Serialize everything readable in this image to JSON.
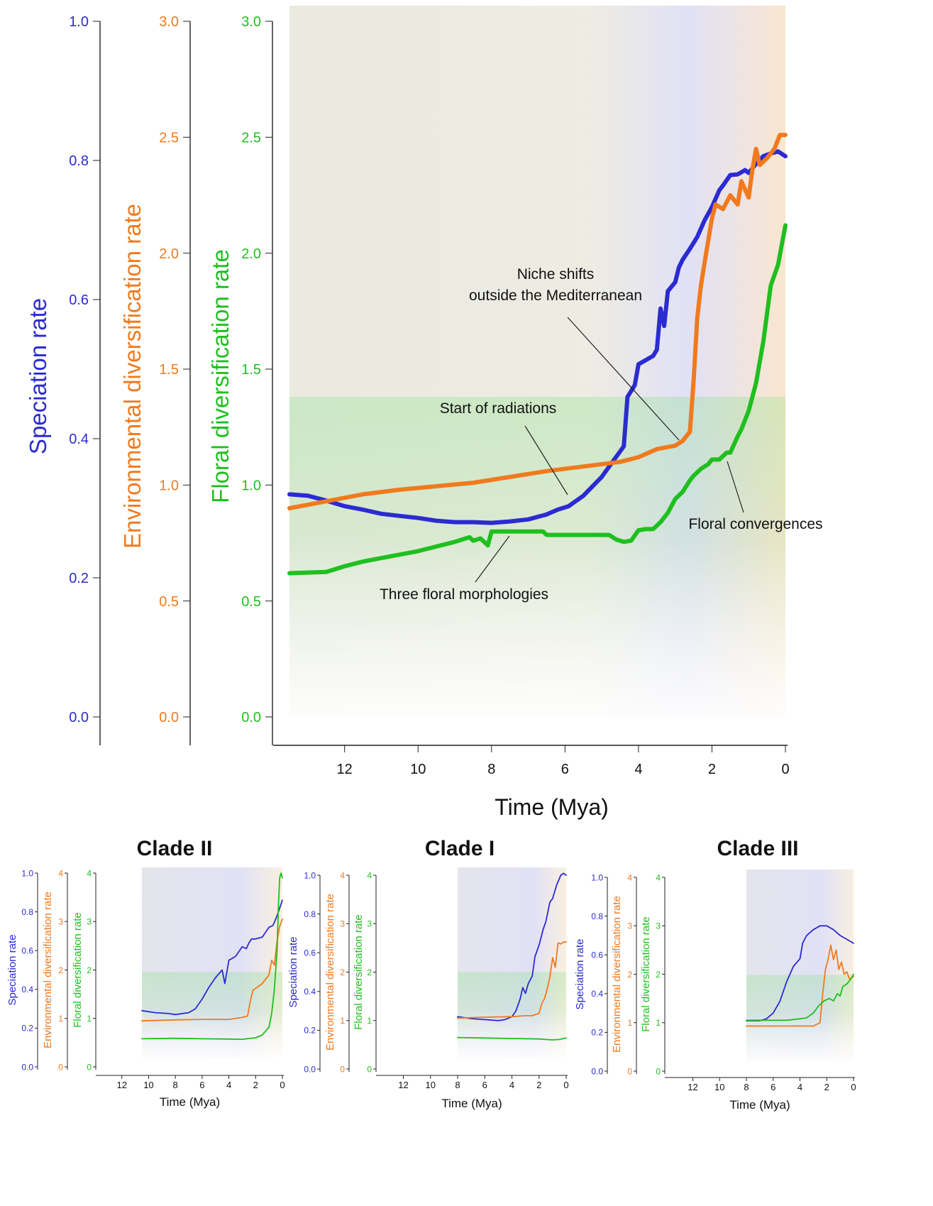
{
  "colors": {
    "speciation": "#2b2bd1",
    "environmental": "#f07a1e",
    "floral": "#1fbf1f",
    "axis": "#222222",
    "text": "#111111"
  },
  "chart_data": [
    {
      "type": "line",
      "panel": "main",
      "xlabel": "Time (Mya)",
      "xlim": [
        13.5,
        0
      ],
      "xticks": [
        "12",
        "10",
        "8",
        "6",
        "4",
        "2",
        "0"
      ],
      "xtick_values": [
        12,
        10,
        8,
        6,
        4,
        2,
        0
      ],
      "axes": [
        {
          "key": "speciation",
          "label": "Speciation rate",
          "ylim": [
            0,
            1.0
          ],
          "ticks": [
            "0.0",
            "0.2",
            "0.4",
            "0.6",
            "0.8",
            "1.0"
          ],
          "tick_values": [
            0,
            0.2,
            0.4,
            0.6,
            0.8,
            1.0
          ]
        },
        {
          "key": "environmental",
          "label": "Environmental diversification rate",
          "ylim": [
            0,
            3.0
          ],
          "ticks": [
            "0.0",
            "0.5",
            "1.0",
            "1.5",
            "2.0",
            "2.5",
            "3.0"
          ],
          "tick_values": [
            0,
            0.5,
            1.0,
            1.5,
            2.0,
            2.5,
            3.0
          ]
        },
        {
          "key": "floral",
          "label": "Floral diversification rate",
          "ylim": [
            0,
            3.0
          ],
          "ticks": [
            "0.0",
            "0.5",
            "1.0",
            "1.5",
            "2.0",
            "2.5",
            "3.0"
          ],
          "tick_values": [
            0,
            0.5,
            1.0,
            1.5,
            2.0,
            2.5,
            3.0
          ]
        }
      ],
      "series": [
        {
          "axis": "speciation",
          "color_key": "speciation",
          "x": [
            13.5,
            13.0,
            12.5,
            12.0,
            11.5,
            11.0,
            10.5,
            10.0,
            9.5,
            9.0,
            8.5,
            8.0,
            7.5,
            7.0,
            6.5,
            6.2,
            5.9,
            5.5,
            5.0,
            4.7,
            4.4,
            4.3,
            4.1,
            4.0,
            3.9,
            3.6,
            3.5,
            3.4,
            3.3,
            3.2,
            3.0,
            2.9,
            2.8,
            2.6,
            2.4,
            2.2,
            2.0,
            1.8,
            1.7,
            1.5,
            1.3,
            1.1,
            1.0,
            0.8,
            0.6,
            0.4,
            0.2,
            0.0
          ],
          "values": [
            0.32,
            0.318,
            0.311,
            0.303,
            0.298,
            0.292,
            0.289,
            0.286,
            0.282,
            0.28,
            0.28,
            0.279,
            0.281,
            0.284,
            0.291,
            0.298,
            0.303,
            0.318,
            0.345,
            0.367,
            0.389,
            0.46,
            0.477,
            0.507,
            0.51,
            0.519,
            0.528,
            0.587,
            0.562,
            0.612,
            0.625,
            0.646,
            0.657,
            0.673,
            0.69,
            0.714,
            0.733,
            0.757,
            0.764,
            0.779,
            0.78,
            0.786,
            0.782,
            0.795,
            0.806,
            0.81,
            0.813,
            0.806
          ]
        },
        {
          "axis": "environmental",
          "color_key": "environmental",
          "x": [
            13.5,
            12.5,
            11.5,
            10.5,
            9.5,
            8.5,
            7.5,
            6.5,
            5.5,
            4.5,
            4.0,
            3.5,
            3.0,
            2.8,
            2.6,
            2.5,
            2.4,
            2.3,
            2.2,
            2.0,
            1.9,
            1.7,
            1.5,
            1.3,
            1.2,
            1.0,
            0.9,
            0.8,
            0.7,
            0.5,
            0.3,
            0.15,
            0.0
          ],
          "values": [
            0.9,
            0.93,
            0.96,
            0.98,
            0.995,
            1.01,
            1.035,
            1.06,
            1.08,
            1.1,
            1.12,
            1.155,
            1.17,
            1.19,
            1.23,
            1.45,
            1.72,
            1.86,
            1.96,
            2.15,
            2.21,
            2.19,
            2.25,
            2.21,
            2.31,
            2.24,
            2.36,
            2.45,
            2.38,
            2.41,
            2.45,
            2.51,
            2.51
          ]
        },
        {
          "axis": "floral",
          "color_key": "floral",
          "x": [
            13.5,
            12.5,
            12.0,
            11.5,
            11.0,
            10.5,
            10.0,
            9.5,
            9.0,
            8.6,
            8.5,
            8.3,
            8.1,
            8.0,
            7.8,
            7.5,
            7.0,
            6.6,
            6.5,
            6.0,
            5.5,
            4.8,
            4.6,
            4.4,
            4.2,
            4.0,
            3.8,
            3.7,
            3.6,
            3.4,
            3.2,
            3.0,
            2.8,
            2.6,
            2.5,
            2.3,
            2.1,
            2.0,
            1.8,
            1.6,
            1.5,
            1.3,
            1.2,
            1.0,
            0.8,
            0.6,
            0.4,
            0.2,
            0.0
          ],
          "values": [
            0.62,
            0.625,
            0.65,
            0.67,
            0.685,
            0.7,
            0.715,
            0.735,
            0.755,
            0.775,
            0.76,
            0.77,
            0.74,
            0.8,
            0.8,
            0.8,
            0.8,
            0.8,
            0.785,
            0.785,
            0.785,
            0.785,
            0.765,
            0.755,
            0.76,
            0.805,
            0.81,
            0.81,
            0.81,
            0.84,
            0.88,
            0.94,
            0.97,
            1.02,
            1.04,
            1.07,
            1.09,
            1.11,
            1.11,
            1.14,
            1.14,
            1.21,
            1.24,
            1.32,
            1.44,
            1.62,
            1.86,
            1.95,
            2.12
          ]
        }
      ],
      "annotations": [
        {
          "lines": [
            "Niche shifts",
            "outside the Mediterranean"
          ]
        },
        {
          "lines": [
            "Start of radiations"
          ]
        },
        {
          "lines": [
            "Floral convergences"
          ]
        },
        {
          "lines": [
            "Three floral morphologies"
          ]
        }
      ]
    },
    {
      "type": "line",
      "panel": "clade-ii",
      "title": "Clade II",
      "xlabel": "Time (Mya)",
      "xlim": [
        14,
        0
      ],
      "xticks": [
        "12",
        "10",
        "8",
        "6",
        "4",
        "2",
        "0"
      ],
      "xtick_values": [
        12,
        10,
        8,
        6,
        4,
        2,
        0
      ],
      "axes": [
        {
          "key": "speciation",
          "label": "Speciation rate",
          "ylim": [
            0,
            1.0
          ],
          "ticks": [
            "0.0",
            "0.2",
            "0.4",
            "0.6",
            "0.8",
            "1.0"
          ],
          "tick_values": [
            0,
            0.2,
            0.4,
            0.6,
            0.8,
            1.0
          ]
        },
        {
          "key": "environmental",
          "label": "Environmental diversification rate",
          "ylim": [
            0,
            4
          ],
          "ticks": [
            "0",
            "1",
            "2",
            "3",
            "4"
          ],
          "tick_values": [
            0,
            1,
            2,
            3,
            4
          ]
        },
        {
          "key": "floral",
          "label": "Floral diversification rate",
          "ylim": [
            0,
            4
          ],
          "ticks": [
            "0",
            "1",
            "2",
            "3",
            "4"
          ],
          "tick_values": [
            0,
            1,
            2,
            3,
            4
          ]
        }
      ],
      "series": [
        {
          "axis": "speciation",
          "color_key": "speciation",
          "x": [
            10.5,
            9.5,
            8.5,
            8.0,
            7.0,
            6.5,
            6.0,
            5.5,
            5.0,
            4.5,
            4.3,
            4.0,
            3.5,
            3.0,
            2.7,
            2.5,
            2.3,
            2.0,
            1.5,
            1.0,
            0.7,
            0.4,
            0.0
          ],
          "values": [
            0.29,
            0.28,
            0.275,
            0.27,
            0.28,
            0.3,
            0.35,
            0.41,
            0.46,
            0.5,
            0.43,
            0.55,
            0.57,
            0.62,
            0.61,
            0.64,
            0.66,
            0.66,
            0.67,
            0.72,
            0.73,
            0.78,
            0.86
          ]
        },
        {
          "axis": "environmental",
          "color_key": "environmental",
          "x": [
            10.5,
            8.0,
            6.0,
            4.0,
            3.0,
            2.6,
            2.4,
            2.2,
            2.0,
            1.5,
            1.0,
            0.8,
            0.6,
            0.4,
            0.2,
            0.0
          ],
          "values": [
            0.95,
            0.97,
            0.98,
            0.98,
            1.02,
            1.05,
            1.35,
            1.58,
            1.62,
            1.72,
            1.9,
            2.2,
            2.1,
            2.6,
            2.9,
            3.05
          ]
        },
        {
          "axis": "floral",
          "color_key": "floral",
          "x": [
            10.5,
            8.0,
            6.0,
            4.0,
            3.0,
            2.0,
            1.5,
            1.0,
            0.8,
            0.6,
            0.4,
            0.3,
            0.2,
            0.1,
            0.0
          ],
          "values": [
            0.58,
            0.59,
            0.58,
            0.575,
            0.57,
            0.6,
            0.66,
            0.82,
            1.1,
            1.6,
            2.4,
            3.3,
            3.9,
            4.0,
            3.9
          ]
        }
      ]
    },
    {
      "type": "line",
      "panel": "clade-i",
      "title": "Clade I",
      "xlabel": "Time (Mya)",
      "xlim": [
        14,
        0
      ],
      "xticks": [
        "12",
        "10",
        "8",
        "6",
        "4",
        "2",
        "0"
      ],
      "xtick_values": [
        12,
        10,
        8,
        6,
        4,
        2,
        0
      ],
      "axes": [
        {
          "key": "speciation",
          "label": "Speciation rate",
          "ylim": [
            0,
            1.0
          ],
          "ticks": [
            "0.0",
            "0.2",
            "0.4",
            "0.6",
            "0.8",
            "1.0"
          ],
          "tick_values": [
            0,
            0.2,
            0.4,
            0.6,
            0.8,
            1.0
          ]
        },
        {
          "key": "environmental",
          "label": "Environmental diversification rate",
          "ylim": [
            0,
            4
          ],
          "ticks": [
            "0",
            "1",
            "2",
            "3",
            "4"
          ],
          "tick_values": [
            0,
            1,
            2,
            3,
            4
          ]
        },
        {
          "key": "floral",
          "label": "Floral diversification rate",
          "ylim": [
            0,
            4
          ],
          "ticks": [
            "0",
            "1",
            "2",
            "3",
            "4"
          ],
          "tick_values": [
            0,
            1,
            2,
            3,
            4
          ]
        }
      ],
      "series": [
        {
          "axis": "speciation",
          "color_key": "speciation",
          "x": [
            8.0,
            7.0,
            6.0,
            5.0,
            4.5,
            4.0,
            3.7,
            3.4,
            3.2,
            3.0,
            2.8,
            2.5,
            2.3,
            2.0,
            1.7,
            1.5,
            1.2,
            1.0,
            0.7,
            0.4,
            0.2,
            0.0
          ],
          "values": [
            0.27,
            0.26,
            0.255,
            0.25,
            0.255,
            0.27,
            0.3,
            0.36,
            0.42,
            0.39,
            0.44,
            0.48,
            0.58,
            0.64,
            0.72,
            0.76,
            0.86,
            0.88,
            0.95,
            1.0,
            1.01,
            1.0
          ]
        },
        {
          "axis": "environmental",
          "color_key": "environmental",
          "x": [
            8.0,
            6.0,
            4.0,
            3.0,
            2.5,
            2.0,
            1.8,
            1.6,
            1.4,
            1.2,
            1.0,
            0.8,
            0.6,
            0.4,
            0.2,
            0.0
          ],
          "values": [
            1.05,
            1.07,
            1.08,
            1.1,
            1.1,
            1.15,
            1.35,
            1.45,
            1.65,
            1.9,
            2.3,
            2.1,
            2.6,
            2.58,
            2.62,
            2.62
          ]
        },
        {
          "axis": "floral",
          "color_key": "floral",
          "x": [
            8.0,
            6.0,
            4.0,
            2.0,
            1.0,
            0.5,
            0.0
          ],
          "values": [
            0.65,
            0.64,
            0.63,
            0.62,
            0.6,
            0.61,
            0.64
          ]
        }
      ]
    },
    {
      "type": "line",
      "panel": "clade-iii",
      "title": "Clade III",
      "xlabel": "Time (Mya)",
      "xlim": [
        14,
        0
      ],
      "xticks": [
        "12",
        "10",
        "8",
        "6",
        "4",
        "2",
        "0"
      ],
      "xtick_values": [
        12,
        10,
        8,
        6,
        4,
        2,
        0
      ],
      "axes": [
        {
          "key": "speciation",
          "label": "Speciation rate",
          "ylim": [
            0,
            1.0
          ],
          "ticks": [
            "0.0",
            "0.2",
            "0.4",
            "0.6",
            "0.8",
            "1.0"
          ],
          "tick_values": [
            0,
            0.2,
            0.4,
            0.6,
            0.8,
            1.0
          ]
        },
        {
          "key": "environmental",
          "label": "Environmental diversification rate",
          "ylim": [
            0,
            4
          ],
          "ticks": [
            "0",
            "1",
            "2",
            "3",
            "4"
          ],
          "tick_values": [
            0,
            1,
            2,
            3,
            4
          ]
        },
        {
          "key": "floral",
          "label": "Floral diversification rate",
          "ylim": [
            0,
            4
          ],
          "ticks": [
            "0",
            "1",
            "2",
            "3",
            "4"
          ],
          "tick_values": [
            0,
            1,
            2,
            3,
            4
          ]
        }
      ],
      "series": [
        {
          "axis": "speciation",
          "color_key": "speciation",
          "x": [
            8.0,
            7.0,
            6.5,
            6.0,
            5.5,
            5.0,
            4.5,
            4.0,
            3.8,
            3.5,
            3.0,
            2.5,
            2.0,
            1.5,
            1.0,
            0.5,
            0.0
          ],
          "values": [
            0.26,
            0.26,
            0.27,
            0.3,
            0.36,
            0.46,
            0.54,
            0.58,
            0.66,
            0.7,
            0.73,
            0.75,
            0.75,
            0.73,
            0.7,
            0.68,
            0.66
          ]
        },
        {
          "axis": "environmental",
          "color_key": "environmental",
          "x": [
            8.0,
            6.0,
            4.0,
            3.0,
            2.5,
            2.3,
            2.1,
            1.9,
            1.7,
            1.5,
            1.3,
            1.1,
            0.9,
            0.7,
            0.5,
            0.3,
            0.0
          ],
          "values": [
            0.93,
            0.93,
            0.93,
            0.93,
            1.0,
            1.6,
            2.1,
            2.3,
            2.6,
            2.3,
            2.5,
            2.1,
            2.25,
            2.0,
            2.05,
            1.9,
            1.95
          ]
        },
        {
          "axis": "floral",
          "color_key": "floral",
          "x": [
            8.0,
            6.0,
            5.0,
            4.0,
            3.5,
            3.0,
            2.6,
            2.2,
            1.8,
            1.5,
            1.2,
            1.0,
            0.8,
            0.5,
            0.2,
            0.0
          ],
          "values": [
            1.05,
            1.05,
            1.05,
            1.08,
            1.1,
            1.2,
            1.35,
            1.45,
            1.5,
            1.45,
            1.6,
            1.55,
            1.75,
            1.8,
            1.9,
            2.0
          ]
        }
      ]
    }
  ]
}
